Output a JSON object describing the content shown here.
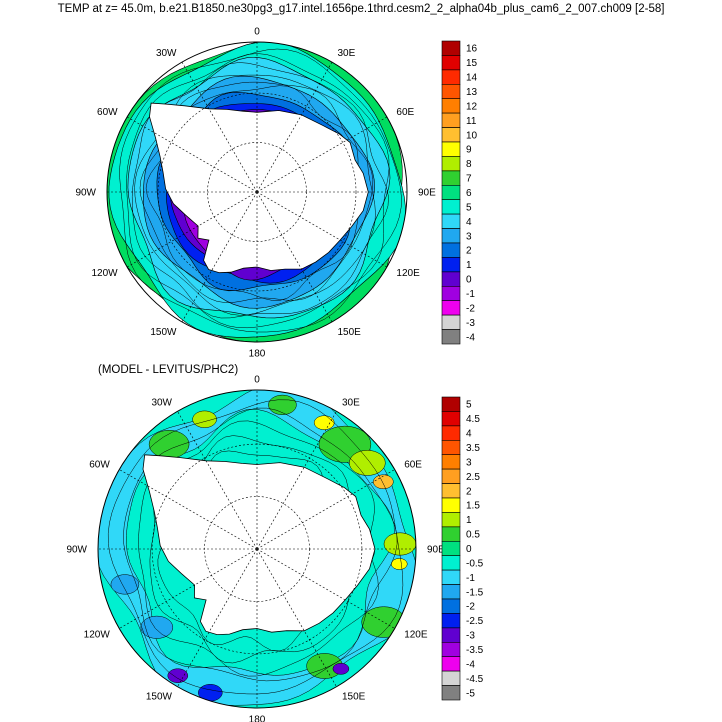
{
  "title": "TEMP at z=  45.0m, b.e21.B1850.ne30pg3_g17.intel.1656pe.1thrd.cesm2_2_alpha04b_plus_cam6_2_007.ch009 [2-58]",
  "chart_data": [
    {
      "type": "heatmap",
      "projection": "south-polar-stereographic",
      "title": "",
      "longitude_labels": [
        "0",
        "30E",
        "60E",
        "90E",
        "120E",
        "150E",
        "180",
        "150W",
        "120W",
        "90W",
        "60W",
        "30W"
      ],
      "colorbar_labels": [
        "16",
        "15",
        "14",
        "13",
        "12",
        "11",
        "10",
        "9",
        "8",
        "7",
        "6",
        "5",
        "4",
        "3",
        "2",
        "1",
        "0",
        "-1",
        "-2",
        "-3",
        "-4"
      ],
      "colorbar_colors": [
        "#b00000",
        "#e00000",
        "#ff2a00",
        "#ff5500",
        "#ff7f00",
        "#ff9f20",
        "#ffbf30",
        "#ffff00",
        "#b0ee00",
        "#30d030",
        "#00e080",
        "#00f0d0",
        "#30d8f8",
        "#20a8f0",
        "#0070e0",
        "#0020f0",
        "#6000d0",
        "#a000e0",
        "#ee00ee",
        "#d4d4d4",
        "#808080"
      ]
    },
    {
      "type": "heatmap",
      "projection": "south-polar-stereographic",
      "title": "(MODEL - LEVITUS/PHC2)",
      "longitude_labels": [
        "0",
        "30E",
        "60E",
        "90E",
        "120E",
        "150E",
        "180",
        "150W",
        "120W",
        "90W",
        "60W",
        "30W"
      ],
      "colorbar_labels": [
        "5",
        "4.5",
        "4",
        "3.5",
        "3",
        "2.5",
        "2",
        "1.5",
        "1",
        "0.5",
        "0",
        "-0.5",
        "-1",
        "-1.5",
        "-2",
        "-2.5",
        "-3",
        "-3.5",
        "-4",
        "-4.5",
        "-5"
      ],
      "colorbar_colors": [
        "#b00000",
        "#e00000",
        "#ff2a00",
        "#ff5500",
        "#ff7f00",
        "#ff9f20",
        "#ffbf30",
        "#ffff00",
        "#b0ee00",
        "#30d030",
        "#00e080",
        "#00f0d0",
        "#30d8f8",
        "#20a8f0",
        "#0070e0",
        "#0020f0",
        "#6000d0",
        "#a000e0",
        "#ee00ee",
        "#d4d4d4",
        "#808080"
      ]
    }
  ]
}
